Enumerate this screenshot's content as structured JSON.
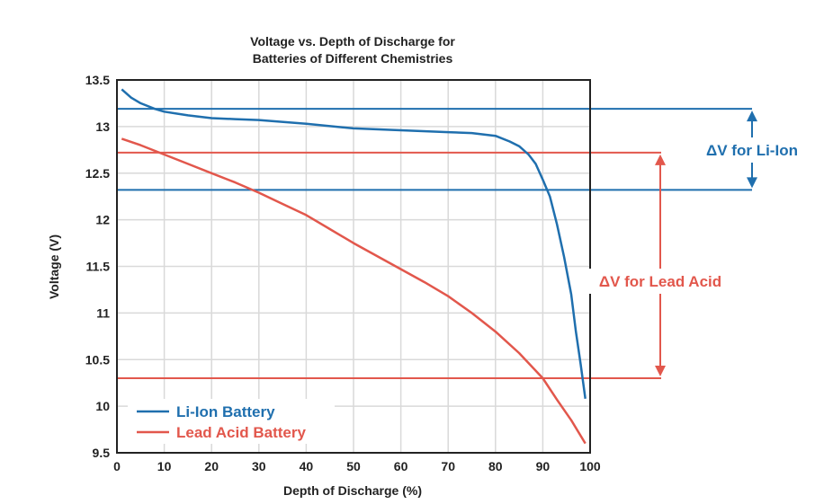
{
  "chart_data": {
    "type": "line",
    "title": [
      "Voltage vs. Depth of Discharge for",
      "Batteries of Different Chemistries"
    ],
    "xlabel": "Depth of Discharge (%)",
    "ylabel": "Voltage (V)",
    "xlim": [
      0,
      100
    ],
    "ylim": [
      9.5,
      13.5
    ],
    "x_ticks": [
      "0",
      "10",
      "20",
      "30",
      "40",
      "50",
      "60",
      "70",
      "80",
      "90",
      "100"
    ],
    "y_ticks": [
      "9.5",
      "10",
      "10.5",
      "11",
      "11.5",
      "12",
      "12.5",
      "13",
      "13.5"
    ],
    "grid": true,
    "legend_position": "bottom-left",
    "colors": {
      "li_ion": "#1f6fae",
      "lead_acid": "#e2574c",
      "frame": "#222222",
      "grid": "#d9d9d9"
    },
    "series": [
      {
        "name": "Li-Ion Battery",
        "color": "#1f6fae",
        "points": [
          [
            1,
            13.4
          ],
          [
            3,
            13.31
          ],
          [
            5,
            13.25
          ],
          [
            8,
            13.19
          ],
          [
            10,
            13.16
          ],
          [
            15,
            13.12
          ],
          [
            20,
            13.09
          ],
          [
            25,
            13.08
          ],
          [
            30,
            13.07
          ],
          [
            40,
            13.03
          ],
          [
            50,
            12.98
          ],
          [
            60,
            12.96
          ],
          [
            70,
            12.94
          ],
          [
            75,
            12.93
          ],
          [
            80,
            12.9
          ],
          [
            83,
            12.84
          ],
          [
            85,
            12.79
          ],
          [
            87,
            12.7
          ],
          [
            88.5,
            12.6
          ],
          [
            90,
            12.43
          ],
          [
            91.5,
            12.25
          ],
          [
            93,
            11.95
          ],
          [
            94.5,
            11.6
          ],
          [
            96,
            11.2
          ],
          [
            97,
            10.8
          ],
          [
            98,
            10.45
          ],
          [
            99,
            10.08
          ]
        ]
      },
      {
        "name": "Lead Acid Battery",
        "color": "#e2574c",
        "points": [
          [
            1,
            12.87
          ],
          [
            5,
            12.8
          ],
          [
            10,
            12.7
          ],
          [
            15,
            12.6
          ],
          [
            20,
            12.5
          ],
          [
            25,
            12.4
          ],
          [
            30,
            12.29
          ],
          [
            35,
            12.17
          ],
          [
            40,
            12.05
          ],
          [
            45,
            11.9
          ],
          [
            50,
            11.75
          ],
          [
            55,
            11.61
          ],
          [
            60,
            11.47
          ],
          [
            65,
            11.33
          ],
          [
            70,
            11.18
          ],
          [
            75,
            11.0
          ],
          [
            80,
            10.8
          ],
          [
            85,
            10.57
          ],
          [
            90,
            10.3
          ],
          [
            93,
            10.07
          ],
          [
            96,
            9.85
          ],
          [
            99,
            9.6
          ]
        ]
      }
    ],
    "reference_lines": [
      {
        "series": "Li-Ion Battery",
        "y": 13.19
      },
      {
        "series": "Li-Ion Battery",
        "y": 12.32
      },
      {
        "series": "Lead Acid Battery",
        "y": 12.72
      },
      {
        "series": "Lead Acid Battery",
        "y": 10.3
      }
    ],
    "annotations": [
      {
        "text": "ΔV for Li-Ion",
        "series": "Li-Ion Battery"
      },
      {
        "text": "ΔV for Lead Acid",
        "series": "Lead Acid Battery"
      }
    ]
  }
}
